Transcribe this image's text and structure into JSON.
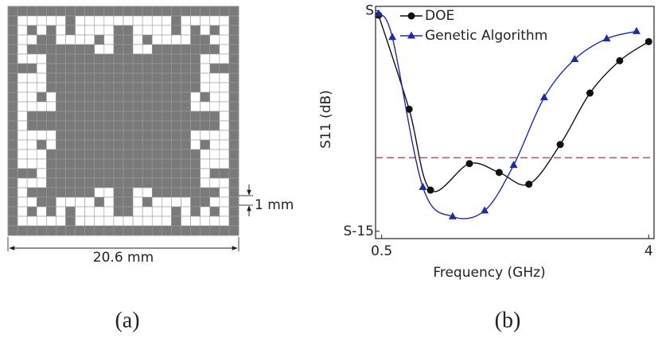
{
  "panel_a": {
    "dimension_width": "20.6 mm",
    "dimension_cell": "1 mm",
    "caption": "(a)"
  },
  "chart_data": {
    "type": "line",
    "caption": "(b)",
    "xlabel": "Frequency (GHz)",
    "ylabel": "S11 (dB)",
    "xlim": [
      0.42,
      4.07
    ],
    "xticks": [
      0.5,
      4
    ],
    "ylim": [
      -15.5,
      0.3
    ],
    "yticks": [
      {
        "value": 0,
        "label": "S"
      },
      {
        "value": -15,
        "label": "S-15"
      }
    ],
    "threshold": -10,
    "threshold_color": "#b0506a",
    "legend": "upper left",
    "series": [
      {
        "name": "DOE",
        "color": "#111111",
        "marker": "circle",
        "x": [
          0.46,
          0.86,
          1.14,
          1.65,
          2.04,
          2.43,
          2.84,
          3.23,
          3.62,
          4.0
        ],
        "values": [
          -0.3,
          -6.7,
          -12.2,
          -10.4,
          -11.0,
          -11.8,
          -9.1,
          -5.6,
          -3.4,
          -2.1
        ]
      },
      {
        "name": "Genetic Algorithm",
        "color": "#1f2aa8",
        "marker": "triangle",
        "x": [
          0.46,
          0.64,
          1.04,
          1.43,
          1.85,
          2.23,
          2.63,
          3.03,
          3.45,
          3.84
        ],
        "values": [
          -0.2,
          -1.8,
          -12.0,
          -14.0,
          -13.6,
          -10.5,
          -5.9,
          -3.3,
          -1.9,
          -1.4
        ]
      }
    ]
  }
}
